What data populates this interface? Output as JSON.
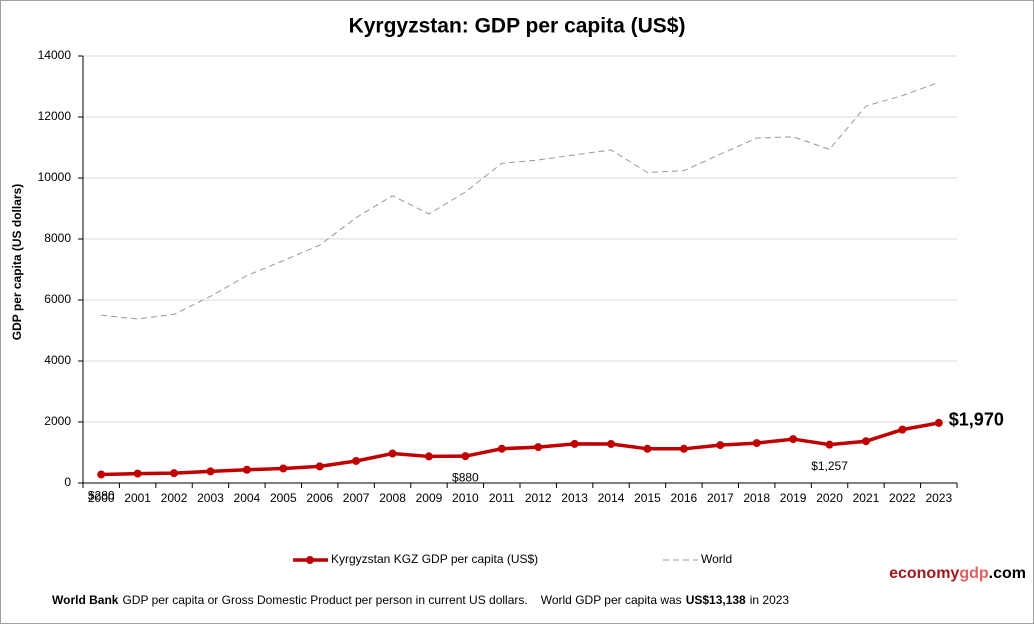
{
  "chart_data": {
    "type": "line",
    "title": "Kyrgyzstan: GDP per capita (US$)",
    "y_label": "GDP per capita (US dollars)",
    "categories": [
      "2000",
      "2001",
      "2002",
      "2003",
      "2004",
      "2005",
      "2006",
      "2007",
      "2008",
      "2009",
      "2010",
      "2011",
      "2012",
      "2013",
      "2014",
      "2015",
      "2016",
      "2017",
      "2018",
      "2019",
      "2020",
      "2021",
      "2022",
      "2023"
    ],
    "series": [
      {
        "name": "Kyrgyzstan KGZ GDP per capita (US$)",
        "color": "#c00000",
        "line_style": "solid",
        "marker": true,
        "values": [
          280,
          308,
          322,
          381,
          434,
          476,
          545,
          722,
          966,
          871,
          880,
          1124,
          1178,
          1282,
          1280,
          1121,
          1121,
          1243,
          1308,
          1440,
          1257,
          1370,
          1750,
          1970
        ],
        "value_labels": [
          "$280",
          null,
          null,
          null,
          null,
          null,
          null,
          null,
          null,
          null,
          "$880",
          null,
          null,
          null,
          null,
          null,
          null,
          null,
          null,
          null,
          "$1,257",
          null,
          null,
          "$1,970"
        ]
      },
      {
        "name": "World",
        "color": "#999999",
        "line_style": "dashed",
        "marker": false,
        "values": [
          5500,
          5380,
          5530,
          6120,
          6800,
          7290,
          7800,
          8700,
          9420,
          8820,
          9540,
          10480,
          10590,
          10760,
          10920,
          10180,
          10240,
          10780,
          11310,
          11350,
          10940,
          12360,
          12700,
          13138
        ]
      }
    ],
    "ylim": [
      0,
      14000
    ],
    "yticks": [
      0,
      2000,
      4000,
      6000,
      8000,
      10000,
      12000,
      14000
    ],
    "grid": true,
    "legend": "bottom",
    "footer": [
      "World Bank",
      "GDP per capita or Gross Domestic Product per person in current US dollars.",
      "World GDP per capita was",
      "US$13,138",
      "in 2023"
    ],
    "brand": [
      "economy",
      "gdp",
      ".com"
    ]
  }
}
